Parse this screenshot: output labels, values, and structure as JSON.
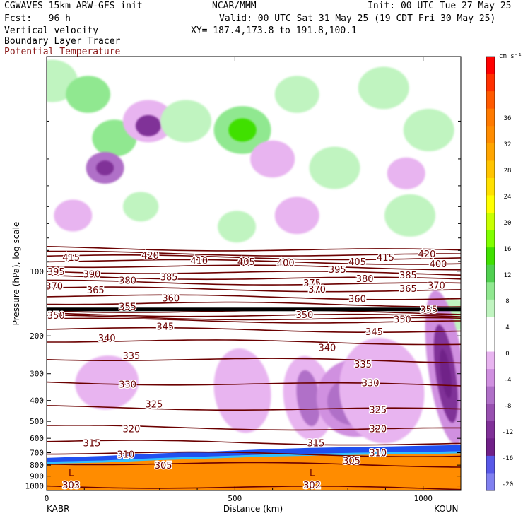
{
  "header": {
    "line1_left": "CGWAVES 15km ARW-GFS init",
    "line1_mid": "NCAR/MMM",
    "line1_right": "Init: 00 UTC Tue 27 May 25",
    "line2_left": "Fcst:   96 h",
    "line2_right": "Valid: 00 UTC Sat 31 May 25 (19 CDT Fri 30 May 25)",
    "line3_left": "Vertical velocity",
    "line3_right": "XY= 187.4,173.8 to 191.8,100.1",
    "line4_left": "Boundary Layer Tracer",
    "line5_left": "Potential Temperature",
    "theta_color": "#8b1a1a"
  },
  "chart_data": {
    "type": "heatmap",
    "title": "Vertical velocity",
    "xlabel": "Distance (km)",
    "ylabel": "Pressure (hPa), log scale",
    "x_ticks": [
      0,
      500,
      1000
    ],
    "xlim": [
      0,
      1100
    ],
    "x_end_labels": [
      "KABR",
      "KOUN"
    ],
    "y_ticks": [
      100,
      200,
      300,
      400,
      500,
      600,
      700,
      800,
      900,
      1000
    ],
    "y_scale": "log",
    "ylim": [
      1050,
      10
    ],
    "colorbar": {
      "unit": "cm s⁻¹",
      "ticks": [
        36,
        32,
        28,
        24,
        20,
        16,
        12,
        8,
        4,
        0,
        -4,
        -8,
        -12,
        -16,
        -20
      ],
      "colors": [
        "#ff0000",
        "#ff3000",
        "#ff5a00",
        "#ff7a00",
        "#ff8c00",
        "#ffa500",
        "#ffc400",
        "#ffe000",
        "#ffff00",
        "#c8ff00",
        "#80ff00",
        "#40e000",
        "#50d050",
        "#90e890",
        "#c0f4c0",
        "#ffffff",
        "#ffffff",
        "#e8b4f0",
        "#d090e0",
        "#b070c8",
        "#9850b0",
        "#803098",
        "#702088",
        "#5858e8",
        "#8080f0"
      ]
    },
    "theta_contours": [
      {
        "value": 303,
        "p": 1000
      },
      {
        "value": 305,
        "p": 780
      },
      {
        "value": 310,
        "p": 700
      },
      {
        "value": 315,
        "p": 620
      },
      {
        "value": 320,
        "p": 530
      },
      {
        "value": 325,
        "p": 430
      },
      {
        "value": 330,
        "p": 330
      },
      {
        "value": 335,
        "p": 255
      },
      {
        "value": 340,
        "p": 210
      },
      {
        "value": 345,
        "p": 185
      },
      {
        "value": 350,
        "p": 168
      },
      {
        "value": 355,
        "p": 163
      },
      {
        "value": 360,
        "p": 158
      },
      {
        "value": 365,
        "p": 152
      },
      {
        "value": 370,
        "p": 140
      },
      {
        "value": 375,
        "p": 130
      },
      {
        "value": 380,
        "p": 120
      },
      {
        "value": 385,
        "p": 112
      },
      {
        "value": 390,
        "p": 106
      },
      {
        "value": 395,
        "p": 100
      },
      {
        "value": 400,
        "p": 94
      },
      {
        "value": 405,
        "p": 89
      },
      {
        "value": 410,
        "p": 85
      },
      {
        "value": 415,
        "p": 82
      },
      {
        "value": 420,
        "p": 78
      }
    ],
    "theta_labels": [
      {
        "text": "415",
        "x": 65,
        "p": 86
      },
      {
        "text": "420",
        "x": 275,
        "p": 84
      },
      {
        "text": "410",
        "x": 405,
        "p": 89
      },
      {
        "text": "405",
        "x": 530,
        "p": 90
      },
      {
        "text": "400",
        "x": 635,
        "p": 91
      },
      {
        "text": "395",
        "x": 25,
        "p": 100
      },
      {
        "text": "390",
        "x": 120,
        "p": 103
      },
      {
        "text": "380",
        "x": 215,
        "p": 110
      },
      {
        "text": "385",
        "x": 325,
        "p": 106
      },
      {
        "text": "375",
        "x": 705,
        "p": 113
      },
      {
        "text": "395",
        "x": 772,
        "p": 98
      },
      {
        "text": "405",
        "x": 825,
        "p": 90
      },
      {
        "text": "415",
        "x": 900,
        "p": 86
      },
      {
        "text": "420",
        "x": 1010,
        "p": 83
      },
      {
        "text": "400",
        "x": 1040,
        "p": 92
      },
      {
        "text": "380",
        "x": 845,
        "p": 108
      },
      {
        "text": "385",
        "x": 960,
        "p": 104
      },
      {
        "text": "370",
        "x": 1035,
        "p": 116
      },
      {
        "text": "370",
        "x": 20,
        "p": 117
      },
      {
        "text": "365",
        "x": 130,
        "p": 122
      },
      {
        "text": "370",
        "x": 718,
        "p": 121
      },
      {
        "text": "365",
        "x": 960,
        "p": 120
      },
      {
        "text": "360",
        "x": 330,
        "p": 133
      },
      {
        "text": "360",
        "x": 825,
        "p": 134
      },
      {
        "text": "355",
        "x": 215,
        "p": 146
      },
      {
        "text": "355",
        "x": 1015,
        "p": 150
      },
      {
        "text": "350",
        "x": 25,
        "p": 160
      },
      {
        "text": "350",
        "x": 685,
        "p": 159
      },
      {
        "text": "350",
        "x": 945,
        "p": 167
      },
      {
        "text": "345",
        "x": 315,
        "p": 180
      },
      {
        "text": "345",
        "x": 870,
        "p": 191
      },
      {
        "text": "340",
        "x": 160,
        "p": 204
      },
      {
        "text": "340",
        "x": 745,
        "p": 226
      },
      {
        "text": "335",
        "x": 225,
        "p": 247
      },
      {
        "text": "335",
        "x": 840,
        "p": 270
      },
      {
        "text": "330",
        "x": 215,
        "p": 335
      },
      {
        "text": "330",
        "x": 860,
        "p": 330
      },
      {
        "text": "325",
        "x": 285,
        "p": 415
      },
      {
        "text": "325",
        "x": 880,
        "p": 440
      },
      {
        "text": "320",
        "x": 225,
        "p": 540
      },
      {
        "text": "320",
        "x": 880,
        "p": 540
      },
      {
        "text": "315",
        "x": 120,
        "p": 630
      },
      {
        "text": "315",
        "x": 715,
        "p": 630
      },
      {
        "text": "310",
        "x": 210,
        "p": 710
      },
      {
        "text": "310",
        "x": 880,
        "p": 700
      },
      {
        "text": "305",
        "x": 310,
        "p": 800
      },
      {
        "text": "305",
        "x": 810,
        "p": 760
      },
      {
        "text": "303",
        "x": 65,
        "p": 990
      },
      {
        "text": "302",
        "x": 705,
        "p": 990
      }
    ],
    "low_markers": [
      {
        "text": "L",
        "x": 65,
        "p": 900
      },
      {
        "text": "L",
        "x": 705,
        "p": 900
      }
    ],
    "blobs": [
      {
        "x": 15,
        "p": 13,
        "r": 40,
        "color": "#c0f4c0"
      },
      {
        "x": 110,
        "p": 15,
        "r": 35,
        "color": "#90e890"
      },
      {
        "x": 180,
        "p": 24,
        "r": 35,
        "color": "#90e890"
      },
      {
        "x": 270,
        "p": 20,
        "r": 40,
        "color": "#e8b4f0"
      },
      {
        "x": 270,
        "p": 21,
        "r": 20,
        "color": "#803098"
      },
      {
        "x": 155,
        "p": 33,
        "r": 30,
        "color": "#b070c8"
      },
      {
        "x": 155,
        "p": 33,
        "r": 14,
        "color": "#803098"
      },
      {
        "x": 370,
        "p": 20,
        "r": 40,
        "color": "#c0f4c0"
      },
      {
        "x": 520,
        "p": 22,
        "r": 45,
        "color": "#90e890"
      },
      {
        "x": 520,
        "p": 22,
        "r": 22,
        "color": "#40e000"
      },
      {
        "x": 600,
        "p": 30,
        "r": 35,
        "color": "#e8b4f0"
      },
      {
        "x": 665,
        "p": 15,
        "r": 35,
        "color": "#c0f4c0"
      },
      {
        "x": 765,
        "p": 33,
        "r": 40,
        "color": "#c0f4c0"
      },
      {
        "x": 895,
        "p": 14,
        "r": 40,
        "color": "#c0f4c0"
      },
      {
        "x": 1015,
        "p": 22,
        "r": 40,
        "color": "#c0f4c0"
      },
      {
        "x": 955,
        "p": 35,
        "r": 30,
        "color": "#e8b4f0"
      },
      {
        "x": 70,
        "p": 55,
        "r": 30,
        "color": "#e8b4f0"
      },
      {
        "x": 250,
        "p": 50,
        "r": 28,
        "color": "#c0f4c0"
      },
      {
        "x": 505,
        "p": 62,
        "r": 30,
        "color": "#c0f4c0"
      },
      {
        "x": 665,
        "p": 55,
        "r": 35,
        "color": "#e8b4f0"
      },
      {
        "x": 965,
        "p": 55,
        "r": 40,
        "color": "#c0f4c0"
      },
      {
        "x": 1080,
        "p": 160,
        "r": 30,
        "color": "#c0f4c0"
      }
    ],
    "streaks": [
      {
        "x": 160,
        "p": 330,
        "rx": 45,
        "ry": 38,
        "color": "#e8b4f0"
      },
      {
        "x": 520,
        "p": 360,
        "rx": 40,
        "ry": 60,
        "color": "#e8b4f0"
      },
      {
        "x": 695,
        "p": 390,
        "rx": 35,
        "ry": 60,
        "color": "#e8b4f0"
      },
      {
        "x": 695,
        "p": 390,
        "rx": 16,
        "ry": 40,
        "color": "#b070c8"
      },
      {
        "x": 820,
        "p": 390,
        "rx": 55,
        "ry": 55,
        "color": "#d090e0"
      },
      {
        "x": 820,
        "p": 400,
        "rx": 40,
        "ry": 35,
        "color": "#b070c8"
      },
      {
        "x": 890,
        "p": 360,
        "rx": 60,
        "ry": 75,
        "color": "#e8b4f0"
      },
      {
        "x": 1060,
        "p": 280,
        "rx": 25,
        "ry": 110,
        "color": "#d090e0"
      },
      {
        "x": 1060,
        "p": 300,
        "rx": 14,
        "ry": 70,
        "color": "#803098"
      },
      {
        "x": 1060,
        "p": 300,
        "rx": 7,
        "ry": 35,
        "color": "#702088"
      }
    ]
  }
}
